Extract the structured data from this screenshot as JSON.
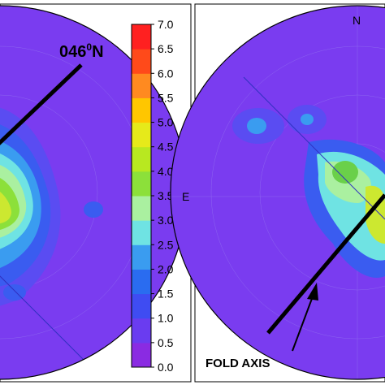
{
  "colors": {
    "background": "#7a3cf0",
    "frame": "#000000",
    "scale": [
      "#8a2be2",
      "#6a3cf0",
      "#3f4cf2",
      "#2a6cf0",
      "#3a9cf0",
      "#6fe3e3",
      "#aaf0a0",
      "#5cd24a",
      "#8ce03a",
      "#b8e820",
      "#e6ea1a",
      "#ffc600",
      "#ff8a20",
      "#ff4a1a",
      "#ff2020"
    ]
  },
  "colorbar": {
    "ticks": [
      "7.0",
      "6.5",
      "6.0",
      "5.5",
      "5.0",
      "4.5",
      "4.0",
      "3.5",
      "3.0",
      "2.5",
      "2.0",
      "1.5",
      "1.0",
      "0.5",
      "0.0"
    ]
  },
  "left_panel": {
    "bearing_label": "046",
    "bearing_degree": "0",
    "bearing_suffix": "N"
  },
  "right_panel": {
    "north_label": "N",
    "ew_label": "E",
    "fold_axis_label": "FOLD AXIS"
  }
}
